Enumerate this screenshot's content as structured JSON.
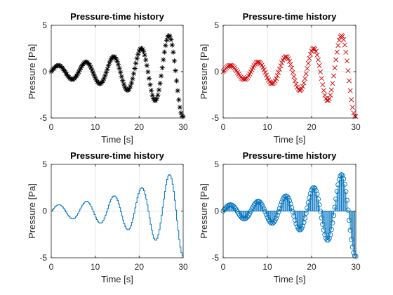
{
  "figure": {
    "background": "#ffffff",
    "subplot_grid": [
      2,
      2
    ]
  },
  "chart_data": [
    {
      "type": "scatter",
      "marker": "asterisk",
      "color": "#000000",
      "title": "Pressure-time history",
      "xlabel": "Time [s]",
      "ylabel": "Pressure [Pa]",
      "xlim": [
        0,
        30
      ],
      "ylim": [
        -5,
        5
      ],
      "xticks": [
        0,
        10,
        20,
        30
      ],
      "yticks": [
        -5,
        0,
        5
      ],
      "grid": true,
      "signal": "p(t) = 0.6*exp(0.07*t)*sin(t)",
      "t": [
        0,
        0.25,
        0.5,
        0.75,
        1.0,
        1.25,
        1.5,
        1.75,
        2.0,
        2.25,
        2.5,
        2.75,
        3.0,
        3.25,
        3.5,
        3.75,
        4.0,
        4.25,
        4.5,
        4.75,
        5.0,
        5.25,
        5.5,
        5.75,
        6.0,
        6.25,
        6.5,
        6.75,
        7.0,
        7.25,
        7.5,
        7.75,
        8.0,
        8.25,
        8.5,
        8.75,
        9.0,
        9.25,
        9.5,
        9.75,
        10.0,
        10.25,
        10.5,
        10.75,
        11.0,
        11.25,
        11.5,
        11.75,
        12.0,
        12.25,
        12.5,
        12.75,
        13.0,
        13.25,
        13.5,
        13.75,
        14.0,
        14.25,
        14.5,
        14.75,
        15.0,
        15.25,
        15.5,
        15.75,
        16.0,
        16.25,
        16.5,
        16.75,
        17.0,
        17.25,
        17.5,
        17.75,
        18.0,
        18.25,
        18.5,
        18.75,
        19.0,
        19.25,
        19.5,
        19.75,
        20.0,
        20.25,
        20.5,
        20.75,
        21.0,
        21.25,
        21.5,
        21.75,
        22.0,
        22.25,
        22.5,
        22.75,
        23.0,
        23.25,
        23.5,
        23.75,
        24.0,
        24.25,
        24.5,
        24.75,
        25.0,
        25.25,
        25.5,
        25.75,
        26.0,
        26.25,
        26.5,
        26.75,
        27.0,
        27.25,
        27.5,
        27.75,
        28.0,
        28.25,
        28.5,
        28.75,
        29.0,
        29.25,
        29.5,
        29.75,
        30.0
      ]
    },
    {
      "type": "scatter",
      "marker": "x",
      "color": "#d40000",
      "title": "Pressure-time history",
      "xlabel": "Time [s]",
      "ylabel": "Pressure [Pa]",
      "xlim": [
        0,
        30
      ],
      "ylim": [
        -5,
        5
      ],
      "xticks": [
        0,
        10,
        20,
        30
      ],
      "yticks": [
        -5,
        0,
        5
      ],
      "grid": true,
      "signal": "p(t) = 0.6*exp(0.07*t)*sin(t)",
      "t": [
        0,
        0.25,
        0.5,
        0.75,
        1.0,
        1.25,
        1.5,
        1.75,
        2.0,
        2.25,
        2.5,
        2.75,
        3.0,
        3.25,
        3.5,
        3.75,
        4.0,
        4.25,
        4.5,
        4.75,
        5.0,
        5.25,
        5.5,
        5.75,
        6.0,
        6.25,
        6.5,
        6.75,
        7.0,
        7.25,
        7.5,
        7.75,
        8.0,
        8.25,
        8.5,
        8.75,
        9.0,
        9.25,
        9.5,
        9.75,
        10.0,
        10.25,
        10.5,
        10.75,
        11.0,
        11.25,
        11.5,
        11.75,
        12.0,
        12.25,
        12.5,
        12.75,
        13.0,
        13.25,
        13.5,
        13.75,
        14.0,
        14.25,
        14.5,
        14.75,
        15.0,
        15.25,
        15.5,
        15.75,
        16.0,
        16.25,
        16.5,
        16.75,
        17.0,
        17.25,
        17.5,
        17.75,
        18.0,
        18.25,
        18.5,
        18.75,
        19.0,
        19.25,
        19.5,
        19.75,
        20.0,
        20.25,
        20.5,
        20.75,
        21.0,
        21.25,
        21.5,
        21.75,
        22.0,
        22.25,
        22.5,
        22.75,
        23.0,
        23.25,
        23.5,
        23.75,
        24.0,
        24.25,
        24.5,
        24.75,
        25.0,
        25.25,
        25.5,
        25.75,
        26.0,
        26.25,
        26.5,
        26.75,
        27.0,
        27.25,
        27.5,
        27.75,
        28.0,
        28.25,
        28.5,
        28.75,
        29.0,
        29.25,
        29.5,
        29.75,
        30.0
      ]
    },
    {
      "type": "line",
      "style": "stairs",
      "color": "#0072bd",
      "title": "Pressure-time history",
      "xlabel": "Time [s]",
      "ylabel": "Pressure [Pa]",
      "xlim": [
        0,
        30
      ],
      "ylim": [
        -5,
        5
      ],
      "xticks": [
        0,
        10,
        20,
        30
      ],
      "yticks": [
        -5,
        0,
        5
      ],
      "grid": true,
      "signal": "p(t) = 0.6*exp(0.07*t)*sin(t)",
      "t": [
        0,
        0.25,
        0.5,
        0.75,
        1.0,
        1.25,
        1.5,
        1.75,
        2.0,
        2.25,
        2.5,
        2.75,
        3.0,
        3.25,
        3.5,
        3.75,
        4.0,
        4.25,
        4.5,
        4.75,
        5.0,
        5.25,
        5.5,
        5.75,
        6.0,
        6.25,
        6.5,
        6.75,
        7.0,
        7.25,
        7.5,
        7.75,
        8.0,
        8.25,
        8.5,
        8.75,
        9.0,
        9.25,
        9.5,
        9.75,
        10.0,
        10.25,
        10.5,
        10.75,
        11.0,
        11.25,
        11.5,
        11.75,
        12.0,
        12.25,
        12.5,
        12.75,
        13.0,
        13.25,
        13.5,
        13.75,
        14.0,
        14.25,
        14.5,
        14.75,
        15.0,
        15.25,
        15.5,
        15.75,
        16.0,
        16.25,
        16.5,
        16.75,
        17.0,
        17.25,
        17.5,
        17.75,
        18.0,
        18.25,
        18.5,
        18.75,
        19.0,
        19.25,
        19.5,
        19.75,
        20.0,
        20.25,
        20.5,
        20.75,
        21.0,
        21.25,
        21.5,
        21.75,
        22.0,
        22.25,
        22.5,
        22.75,
        23.0,
        23.25,
        23.5,
        23.75,
        24.0,
        24.25,
        24.5,
        24.75,
        25.0,
        25.25,
        25.5,
        25.75,
        26.0,
        26.25,
        26.5,
        26.75,
        27.0,
        27.25,
        27.5,
        27.75,
        28.0,
        28.25,
        28.5,
        28.75,
        29.0,
        29.25,
        29.5,
        29.75,
        30.0
      ]
    },
    {
      "type": "bar",
      "style": "stem",
      "marker": "circle",
      "color": "#0072bd",
      "title": "Pressure-time history",
      "xlabel": "Time [s]",
      "ylabel": "Pressure [Pa]",
      "xlim": [
        0,
        30
      ],
      "ylim": [
        -5,
        5
      ],
      "xticks": [
        0,
        10,
        20,
        30
      ],
      "yticks": [
        -5,
        0,
        5
      ],
      "grid": true,
      "signal": "p(t) = 0.6*exp(0.07*t)*sin(t)",
      "t": [
        0,
        0.25,
        0.5,
        0.75,
        1.0,
        1.25,
        1.5,
        1.75,
        2.0,
        2.25,
        2.5,
        2.75,
        3.0,
        3.25,
        3.5,
        3.75,
        4.0,
        4.25,
        4.5,
        4.75,
        5.0,
        5.25,
        5.5,
        5.75,
        6.0,
        6.25,
        6.5,
        6.75,
        7.0,
        7.25,
        7.5,
        7.75,
        8.0,
        8.25,
        8.5,
        8.75,
        9.0,
        9.25,
        9.5,
        9.75,
        10.0,
        10.25,
        10.5,
        10.75,
        11.0,
        11.25,
        11.5,
        11.75,
        12.0,
        12.25,
        12.5,
        12.75,
        13.0,
        13.25,
        13.5,
        13.75,
        14.0,
        14.25,
        14.5,
        14.75,
        15.0,
        15.25,
        15.5,
        15.75,
        16.0,
        16.25,
        16.5,
        16.75,
        17.0,
        17.25,
        17.5,
        17.75,
        18.0,
        18.25,
        18.5,
        18.75,
        19.0,
        19.25,
        19.5,
        19.75,
        20.0,
        20.25,
        20.5,
        20.75,
        21.0,
        21.25,
        21.5,
        21.75,
        22.0,
        22.25,
        22.5,
        22.75,
        23.0,
        23.25,
        23.5,
        23.75,
        24.0,
        24.25,
        24.5,
        24.75,
        25.0,
        25.25,
        25.5,
        25.75,
        26.0,
        26.25,
        26.5,
        26.75,
        27.0,
        27.25,
        27.5,
        27.75,
        28.0,
        28.25,
        28.5,
        28.75,
        29.0,
        29.25,
        29.5,
        29.75,
        30.0
      ]
    }
  ]
}
